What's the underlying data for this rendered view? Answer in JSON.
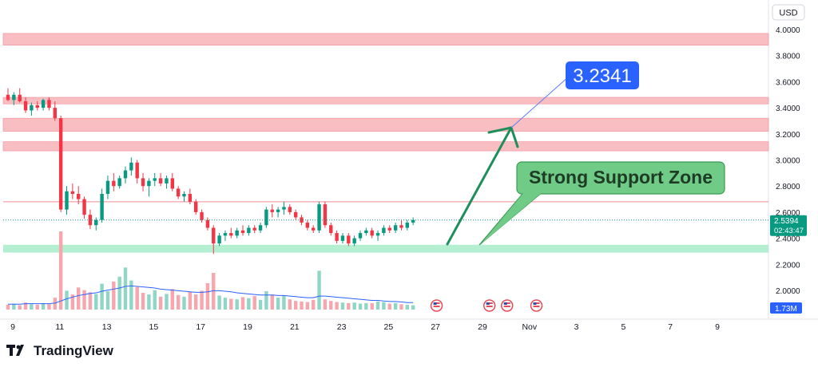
{
  "currency_label": "USD",
  "brand": "TradingView",
  "chart_data": {
    "type": "candlestick",
    "y_axis": {
      "ylim": [
        1.85,
        4.1
      ],
      "tick_labels": [
        "4.0000",
        "3.8000",
        "3.6000",
        "3.4000",
        "3.2000",
        "3.0000",
        "2.8000",
        "2.6000",
        "2.4000",
        "2.2000",
        "2.0000"
      ],
      "tick_values": [
        4.0,
        3.8,
        3.6,
        3.4,
        3.2,
        3.0,
        2.8,
        2.6,
        2.4,
        2.2,
        2.0
      ]
    },
    "x_axis": {
      "tick_labels": [
        "9",
        "11",
        "13",
        "15",
        "17",
        "19",
        "21",
        "23",
        "25",
        "27",
        "29",
        "Nov",
        "3",
        "5",
        "7",
        "9"
      ],
      "tick_index": [
        0,
        8,
        16,
        24,
        32,
        40,
        48,
        56,
        64,
        72,
        80,
        88,
        96,
        104,
        112,
        120
      ]
    },
    "current_price": {
      "value": 2.5394,
      "label": "2.5394",
      "countdown": "02:43:47",
      "color": "#089981"
    },
    "volume_label": "1.73M",
    "resistance_zones": [
      {
        "from": 3.88,
        "to": 3.97
      },
      {
        "from": 3.43,
        "to": 3.48
      },
      {
        "from": 3.22,
        "to": 3.32
      },
      {
        "from": 3.07,
        "to": 3.14
      }
    ],
    "resistance_line": 2.68,
    "support_zone": {
      "from": 2.29,
      "to": 2.35
    },
    "annotations": {
      "target_label": "3.2341",
      "target_value": 3.2341,
      "support_label": "Strong Support Zone"
    },
    "colors": {
      "up": "#089981",
      "down": "#f23645",
      "resistance": "#f7a8ae",
      "support": "#a8ecc9",
      "target": "#2962ff",
      "arrow": "#1e8e5a",
      "callout": "#6fcb85"
    },
    "candles": [
      [
        3.5,
        3.55,
        3.45,
        3.46
      ],
      [
        3.46,
        3.52,
        3.42,
        3.5
      ],
      [
        3.5,
        3.55,
        3.44,
        3.45
      ],
      [
        3.45,
        3.48,
        3.36,
        3.38
      ],
      [
        3.38,
        3.44,
        3.34,
        3.42
      ],
      [
        3.42,
        3.45,
        3.38,
        3.4
      ],
      [
        3.4,
        3.47,
        3.38,
        3.46
      ],
      [
        3.46,
        3.48,
        3.38,
        3.4
      ],
      [
        3.4,
        3.45,
        3.3,
        3.32
      ],
      [
        3.32,
        3.34,
        2.6,
        2.62
      ],
      [
        2.62,
        2.8,
        2.58,
        2.76
      ],
      [
        2.76,
        2.82,
        2.7,
        2.74
      ],
      [
        2.74,
        2.8,
        2.66,
        2.7
      ],
      [
        2.7,
        2.72,
        2.55,
        2.58
      ],
      [
        2.58,
        2.62,
        2.47,
        2.5
      ],
      [
        2.5,
        2.56,
        2.46,
        2.54
      ],
      [
        2.54,
        2.78,
        2.52,
        2.74
      ],
      [
        2.74,
        2.88,
        2.7,
        2.84
      ],
      [
        2.84,
        2.9,
        2.76,
        2.8
      ],
      [
        2.8,
        2.88,
        2.78,
        2.86
      ],
      [
        2.86,
        2.95,
        2.82,
        2.92
      ],
      [
        2.92,
        3.02,
        2.88,
        2.98
      ],
      [
        2.98,
        3.0,
        2.82,
        2.86
      ],
      [
        2.86,
        2.9,
        2.76,
        2.8
      ],
      [
        2.8,
        2.86,
        2.72,
        2.84
      ],
      [
        2.84,
        2.9,
        2.8,
        2.86
      ],
      [
        2.86,
        2.9,
        2.8,
        2.82
      ],
      [
        2.82,
        2.88,
        2.78,
        2.86
      ],
      [
        2.86,
        2.9,
        2.76,
        2.78
      ],
      [
        2.78,
        2.8,
        2.7,
        2.72
      ],
      [
        2.72,
        2.76,
        2.68,
        2.74
      ],
      [
        2.74,
        2.78,
        2.66,
        2.68
      ],
      [
        2.68,
        2.7,
        2.58,
        2.6
      ],
      [
        2.6,
        2.62,
        2.52,
        2.54
      ],
      [
        2.54,
        2.56,
        2.46,
        2.48
      ],
      [
        2.48,
        2.5,
        2.28,
        2.36
      ],
      [
        2.36,
        2.44,
        2.34,
        2.42
      ],
      [
        2.42,
        2.46,
        2.38,
        2.44
      ],
      [
        2.44,
        2.48,
        2.4,
        2.42
      ],
      [
        2.42,
        2.48,
        2.4,
        2.46
      ],
      [
        2.46,
        2.5,
        2.42,
        2.44
      ],
      [
        2.44,
        2.5,
        2.42,
        2.48
      ],
      [
        2.48,
        2.5,
        2.44,
        2.46
      ],
      [
        2.46,
        2.52,
        2.44,
        2.5
      ],
      [
        2.5,
        2.64,
        2.48,
        2.62
      ],
      [
        2.62,
        2.66,
        2.56,
        2.6
      ],
      [
        2.6,
        2.64,
        2.56,
        2.62
      ],
      [
        2.62,
        2.68,
        2.58,
        2.64
      ],
      [
        2.64,
        2.66,
        2.58,
        2.6
      ],
      [
        2.6,
        2.62,
        2.54,
        2.56
      ],
      [
        2.56,
        2.58,
        2.5,
        2.52
      ],
      [
        2.52,
        2.54,
        2.46,
        2.48
      ],
      [
        2.48,
        2.5,
        2.44,
        2.46
      ],
      [
        2.46,
        2.68,
        2.44,
        2.66
      ],
      [
        2.66,
        2.68,
        2.48,
        2.5
      ],
      [
        2.5,
        2.52,
        2.42,
        2.44
      ],
      [
        2.44,
        2.46,
        2.36,
        2.38
      ],
      [
        2.38,
        2.44,
        2.36,
        2.42
      ],
      [
        2.42,
        2.44,
        2.34,
        2.36
      ],
      [
        2.36,
        2.42,
        2.34,
        2.4
      ],
      [
        2.4,
        2.46,
        2.38,
        2.44
      ],
      [
        2.44,
        2.48,
        2.42,
        2.46
      ],
      [
        2.46,
        2.48,
        2.4,
        2.42
      ],
      [
        2.42,
        2.46,
        2.38,
        2.44
      ],
      [
        2.44,
        2.5,
        2.42,
        2.48
      ],
      [
        2.48,
        2.5,
        2.44,
        2.46
      ],
      [
        2.46,
        2.52,
        2.44,
        2.5
      ],
      [
        2.5,
        2.54,
        2.46,
        2.48
      ],
      [
        2.48,
        2.54,
        2.46,
        2.52
      ],
      [
        2.52,
        2.56,
        2.5,
        2.54
      ]
    ],
    "volumes": [
      0.9,
      1.1,
      0.8,
      1.3,
      1.0,
      0.9,
      1.2,
      1.0,
      2.2,
      14.5,
      3.5,
      2.8,
      4.1,
      3.6,
      3.2,
      2.9,
      4.8,
      3.4,
      5.2,
      6.1,
      7.8,
      5.4,
      4.2,
      3.1,
      2.8,
      3.6,
      2.4,
      2.9,
      3.8,
      2.7,
      2.4,
      3.3,
      2.8,
      3.5,
      4.9,
      6.8,
      2.6,
      2.2,
      2.0,
      1.9,
      2.3,
      2.1,
      2.5,
      1.8,
      3.4,
      2.8,
      2.2,
      2.6,
      1.9,
      1.6,
      1.5,
      1.4,
      1.8,
      7.2,
      1.9,
      1.6,
      1.4,
      1.3,
      1.2,
      1.3,
      1.1,
      1.2,
      1.2,
      1.5,
      1.4,
      1.1,
      1.2,
      1.0,
      0.9,
      0.8
    ],
    "volume_ma": [
      1.0,
      1.0,
      1.0,
      1.1,
      1.1,
      1.1,
      1.1,
      1.1,
      1.2,
      1.6,
      2.0,
      2.3,
      2.6,
      2.8,
      3.0,
      3.1,
      3.4,
      3.6,
      3.8,
      4.0,
      4.3,
      4.4,
      4.3,
      4.2,
      4.1,
      4.0,
      3.8,
      3.7,
      3.6,
      3.5,
      3.4,
      3.3,
      3.2,
      3.2,
      3.3,
      3.5,
      3.5,
      3.4,
      3.3,
      3.1,
      3.0,
      2.9,
      2.8,
      2.7,
      2.7,
      2.7,
      2.6,
      2.6,
      2.5,
      2.4,
      2.3,
      2.2,
      2.2,
      2.5,
      2.5,
      2.4,
      2.3,
      2.2,
      2.1,
      2.0,
      1.9,
      1.8,
      1.7,
      1.7,
      1.6,
      1.5,
      1.5,
      1.4,
      1.3,
      1.3
    ],
    "event_flags_at_index": [
      73,
      82,
      85,
      90
    ]
  }
}
